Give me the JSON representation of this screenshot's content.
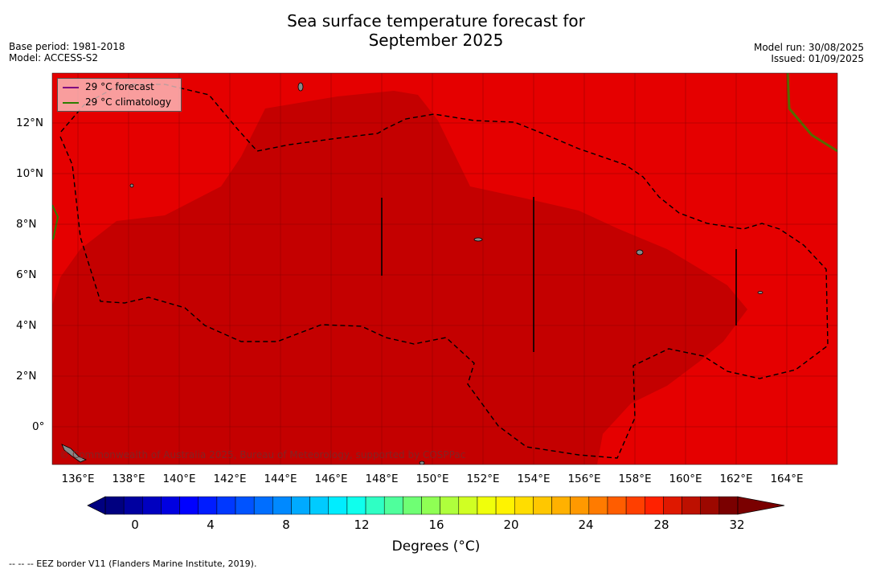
{
  "title_line1": "Sea surface temperature forecast for",
  "title_line2": "September 2025",
  "meta": {
    "base_period": "Base period: 1981-2018",
    "model": "Model: ACCESS-S2",
    "model_run": "Model run: 30/08/2025",
    "issued": "Issued: 01/09/2025"
  },
  "map": {
    "lat_labels": [
      "12°N",
      "10°N",
      "8°N",
      "6°N",
      "4°N",
      "2°N",
      "0°"
    ],
    "lon_labels": [
      "136°E",
      "138°E",
      "140°E",
      "142°E",
      "144°E",
      "146°E",
      "148°E",
      "150°E",
      "152°E",
      "154°E",
      "156°E",
      "158°E",
      "160°E",
      "162°E",
      "164°E"
    ],
    "colors": {
      "warm_red": "#e50000",
      "dark_red": "#c40000",
      "grid": "#7a0000",
      "forecast_line": "#800080",
      "climatology_line": "#2e7d00"
    }
  },
  "legend": {
    "forecast": "29 °C  forecast",
    "climatology": "29 °C  climatology"
  },
  "watermark": "© Commonwealth of Australia 2025, Bureau of Meteorology, supported by COSPPac",
  "colorbar": {
    "ticks": [
      "0",
      "4",
      "8",
      "12",
      "16",
      "20",
      "24",
      "28",
      "32"
    ],
    "label": "Degrees (°C)"
  },
  "footnote": "-- -- -- EEZ border V11 (Flanders Marine Institute, 2019)."
}
